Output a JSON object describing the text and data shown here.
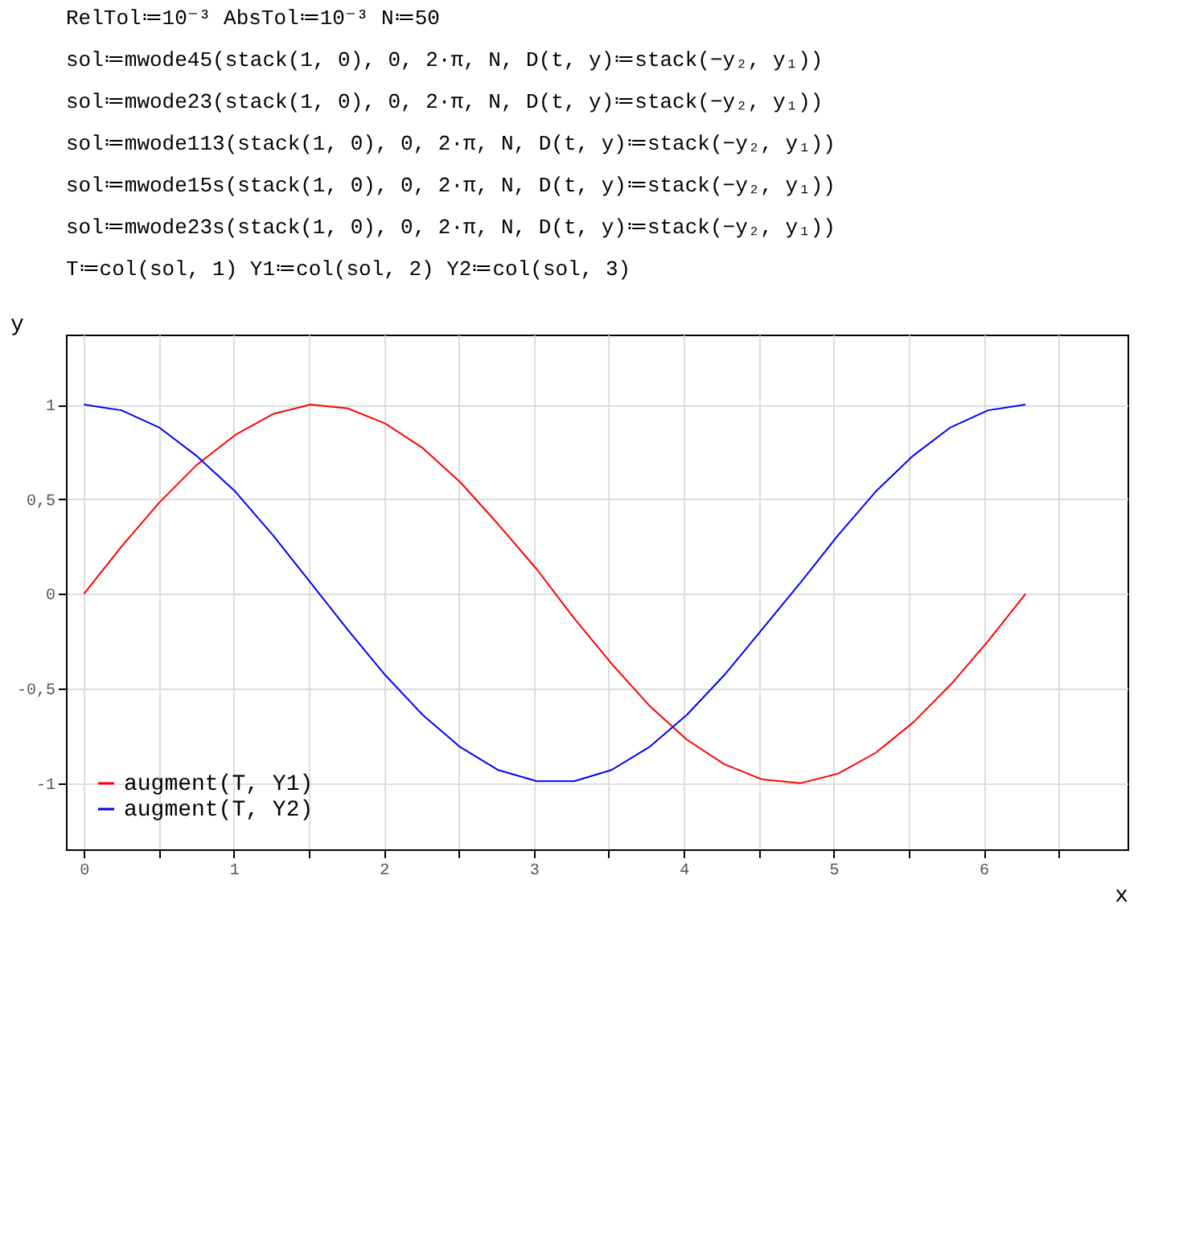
{
  "chart_data": {
    "type": "line",
    "annotations": [
      "RelTol≔10⁻³   AbsTol≔10⁻³   N≔50",
      "sol≔mwode45(stack(1, 0), 0, 2·π, N, D(t, y)≔stack(−y₂, y₁))",
      "sol≔mwode23(stack(1, 0), 0, 2·π, N, D(t, y)≔stack(−y₂, y₁))",
      "sol≔mwode113(stack(1, 0), 0, 2·π, N, D(t, y)≔stack(−y₂, y₁))",
      "sol≔mwode15s(stack(1, 0), 0, 2·π, N, D(t, y)≔stack(−y₂, y₁))",
      "sol≔mwode23s(stack(1, 0), 0, 2·π, N, D(t, y)≔stack(−y₂, y₁))",
      "T≔col(sol, 1)   Y1≔col(sol, 2)   Y2≔col(sol, 3)"
    ],
    "xlabel": "x",
    "ylabel": "y",
    "x": [
      0,
      0.25,
      0.5,
      0.75,
      1.01,
      1.26,
      1.51,
      1.76,
      2.01,
      2.26,
      2.51,
      2.76,
      3.02,
      3.27,
      3.52,
      3.77,
      4.02,
      4.27,
      4.52,
      4.78,
      5.03,
      5.28,
      5.53,
      5.78,
      6.03,
      6.28
    ],
    "series": [
      {
        "name": "augment(T, Y1)",
        "color": "#ff0000",
        "values": [
          0,
          0.25,
          0.48,
          0.68,
          0.84,
          0.95,
          1.0,
          0.98,
          0.9,
          0.77,
          0.59,
          0.37,
          0.13,
          -0.13,
          -0.37,
          -0.59,
          -0.77,
          -0.9,
          -0.98,
          -1.0,
          -0.95,
          -0.84,
          -0.68,
          -0.48,
          -0.25,
          0
        ]
      },
      {
        "name": "augment(T, Y2)",
        "color": "#0000ff",
        "values": [
          1,
          0.97,
          0.88,
          0.73,
          0.54,
          0.31,
          0.06,
          -0.19,
          -0.43,
          -0.64,
          -0.81,
          -0.93,
          -0.99,
          -0.99,
          -0.93,
          -0.81,
          -0.64,
          -0.43,
          -0.19,
          0.06,
          0.31,
          0.54,
          0.73,
          0.88,
          0.97,
          1
        ]
      }
    ],
    "xlim": [
      -0.12,
      6.96
    ],
    "ylim": [
      -1.35,
      1.37
    ],
    "xticks": [
      0,
      {
        "value": 0.5,
        "label": null
      },
      1,
      {
        "value": 1.5,
        "label": null
      },
      2,
      {
        "value": 2.5,
        "label": null
      },
      3,
      {
        "value": 3.5,
        "label": null
      },
      4,
      {
        "value": 4.5,
        "label": null
      },
      5,
      {
        "value": 5.5,
        "label": null
      },
      6,
      {
        "value": 6.5,
        "label": null
      }
    ],
    "yticks": [
      -1,
      {
        "value": -0.5,
        "label": "-0,5"
      },
      0,
      {
        "value": 0.5,
        "label": "0,5"
      },
      1
    ],
    "grid": true,
    "legend": "bottom left",
    "line_style": "solid",
    "marker": "none"
  }
}
